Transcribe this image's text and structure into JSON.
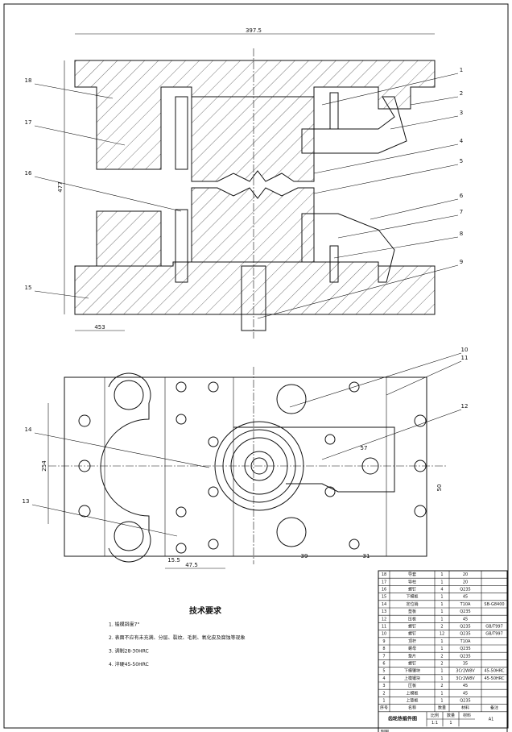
{
  "callouts": [
    "1",
    "2",
    "3",
    "4",
    "5",
    "6",
    "7",
    "8",
    "9",
    "10",
    "11",
    "12",
    "13",
    "14",
    "15",
    "16",
    "17",
    "18"
  ],
  "dimensions": {
    "top_width": "397.5",
    "height": "477",
    "base_left": "453",
    "plan_height": "254",
    "d1": "47.5",
    "d2": "15.5",
    "d3": "39",
    "d4": "31",
    "d5": "57",
    "d6": "50"
  },
  "requirements": {
    "title": "技术要求",
    "items": [
      "1. 锻模斜度7°",
      "2. 表面不应有未充满、分层、裂纹、毛刺、氧化皮及腐蚀等现象",
      "3. 调制28-30HRC",
      "4. 淬硬45-50HRC"
    ]
  },
  "parts_table": {
    "header": [
      "序号",
      "名称",
      "数量",
      "材料",
      "备注"
    ],
    "rows": [
      [
        "18",
        "导套",
        "1",
        "20",
        ""
      ],
      [
        "17",
        "导柱",
        "1",
        "20",
        ""
      ],
      [
        "16",
        "螺钉",
        "4",
        "Q235",
        ""
      ],
      [
        "15",
        "下模板",
        "1",
        "45",
        ""
      ],
      [
        "14",
        "定位销",
        "1",
        "T10A",
        "SB-G8400"
      ],
      [
        "13",
        "垫板",
        "1",
        "Q235",
        ""
      ],
      [
        "12",
        "压板",
        "1",
        "45",
        ""
      ],
      [
        "11",
        "螺钉",
        "2",
        "Q235",
        "GB/T997"
      ],
      [
        "10",
        "螺钉",
        "12",
        "Q235",
        "GB/T997"
      ],
      [
        "9",
        "顶杆",
        "1",
        "T10A",
        ""
      ],
      [
        "8",
        "螺母",
        "1",
        "Q235",
        ""
      ],
      [
        "7",
        "垫片",
        "2",
        "Q235",
        ""
      ],
      [
        "6",
        "螺钉",
        "2",
        "35",
        ""
      ],
      [
        "5",
        "下模镶块",
        "1",
        "3Cr2W8V",
        "45-50HRC"
      ],
      [
        "4",
        "上模镶块",
        "1",
        "3Cr2W8V",
        "45-50HRC"
      ],
      [
        "3",
        "压板",
        "2",
        "45",
        ""
      ],
      [
        "2",
        "上模板",
        "1",
        "45",
        ""
      ],
      [
        "1",
        "上垫板",
        "1",
        "Q235",
        ""
      ]
    ],
    "title": "齿轮热锻件图",
    "scale_label": "比例",
    "qty_label": "数量",
    "mat_label": "材料",
    "scale": "1:1",
    "qty": "1",
    "sheet": "A1",
    "drawn_by": "制图"
  }
}
